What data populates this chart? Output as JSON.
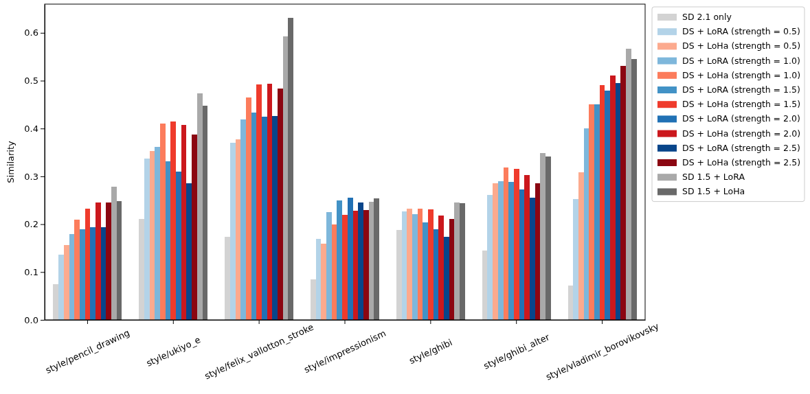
{
  "chart_data": {
    "type": "bar",
    "ylabel": "Similarity",
    "categories": [
      "style/pencil_drawing",
      "style/ukiyo_e",
      "style/felix_vallotton_stroke",
      "style/impressionism",
      "style/ghibi",
      "style/ghibi_alter",
      "style/vladimir_borovikovsky"
    ],
    "ylim": [
      0,
      0.66
    ],
    "yticks": [
      {
        "value": 0,
        "label": "0.0"
      },
      0.1,
      0.2,
      0.3,
      0.4,
      0.5,
      0.6
    ],
    "legend": "right",
    "grid": false,
    "series": [
      {
        "name": "SD 2.1 only",
        "color": "#d3d3d3",
        "values": [
          0.075,
          0.211,
          0.174,
          0.085,
          0.188,
          0.145,
          0.072
        ]
      },
      {
        "name": "DS + LoRA (strength = 0.5)",
        "color": "#b3d3e8",
        "values": [
          0.136,
          0.337,
          0.37,
          0.169,
          0.227,
          0.261,
          0.252
        ]
      },
      {
        "name": "DS + LoHa (strength = 0.5)",
        "color": "#fcaa8e",
        "values": [
          0.157,
          0.353,
          0.378,
          0.159,
          0.232,
          0.285,
          0.309
        ]
      },
      {
        "name": "DS + LoRA (strength = 1.0)",
        "color": "#7eb7db",
        "values": [
          0.179,
          0.362,
          0.419,
          0.225,
          0.221,
          0.29,
          0.401
        ]
      },
      {
        "name": "DS + LoHa (strength = 1.0)",
        "color": "#fc7c5c",
        "values": [
          0.21,
          0.411,
          0.465,
          0.2,
          0.233,
          0.318,
          0.451
        ]
      },
      {
        "name": "DS + LoRA (strength = 1.5)",
        "color": "#4292c6",
        "values": [
          0.189,
          0.331,
          0.433,
          0.249,
          0.204,
          0.289,
          0.451
        ]
      },
      {
        "name": "DS + LoHa (strength = 1.5)",
        "color": "#ef3b2c",
        "values": [
          0.232,
          0.415,
          0.492,
          0.22,
          0.231,
          0.316,
          0.49
        ]
      },
      {
        "name": "DS + LoRA (strength = 2.0)",
        "color": "#2171b5",
        "values": [
          0.194,
          0.31,
          0.425,
          0.255,
          0.19,
          0.273,
          0.479
        ]
      },
      {
        "name": "DS + LoHa (strength = 2.0)",
        "color": "#cb181d",
        "values": [
          0.246,
          0.408,
          0.494,
          0.228,
          0.218,
          0.303,
          0.511
        ]
      },
      {
        "name": "DS + LoRA (strength = 2.5)",
        "color": "#08458a",
        "values": [
          0.193,
          0.286,
          0.426,
          0.245,
          0.174,
          0.256,
          0.495
        ]
      },
      {
        "name": "DS + LoHa (strength = 2.5)",
        "color": "#8b0611",
        "values": [
          0.246,
          0.387,
          0.484,
          0.229,
          0.211,
          0.286,
          0.531
        ]
      },
      {
        "name": "SD 1.5 + LoRA",
        "color": "#a9a9a9",
        "values": [
          0.278,
          0.474,
          0.593,
          0.247,
          0.246,
          0.348,
          0.567
        ]
      },
      {
        "name": "SD 1.5 + LoHa",
        "color": "#696969",
        "values": [
          0.248,
          0.447,
          0.631,
          0.254,
          0.244,
          0.342,
          0.545
        ]
      }
    ]
  }
}
